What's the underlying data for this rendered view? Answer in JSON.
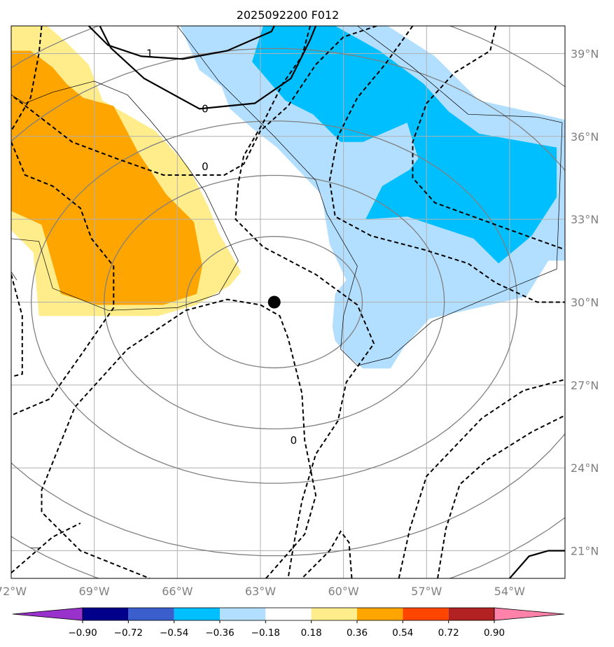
{
  "chart_data": {
    "type": "heatmap",
    "title": "2025092200 F012",
    "x": {
      "ticks": [
        -72,
        -69,
        -66,
        -63,
        -60,
        -57,
        -54
      ],
      "tick_labels": [
        "72°W",
        "69°W",
        "66°W",
        "63°W",
        "60°W",
        "57°W",
        "54°W"
      ],
      "range": [
        -72.0,
        -52.0
      ]
    },
    "y": {
      "ticks": [
        21,
        24,
        27,
        30,
        33,
        36,
        39
      ],
      "tick_labels": [
        "21°N",
        "24°N",
        "27°N",
        "30°N",
        "33°N",
        "36°N",
        "39°N"
      ],
      "range": [
        20.0,
        40.0
      ]
    },
    "grid": true,
    "colorbar": {
      "orientation": "horizontal",
      "extend": "both",
      "colors": [
        "#9932cc",
        "#00008b",
        "#3a5fcd",
        "#00bfff",
        "#b2dfff",
        "#ffffff",
        "#ffec8b",
        "#ffa500",
        "#ff4500",
        "#b22222",
        "#ff82ab"
      ],
      "ticks": [
        -0.9,
        -0.72,
        -0.54,
        -0.36,
        -0.18,
        0.18,
        0.36,
        0.54,
        0.72,
        0.9
      ],
      "tick_labels": [
        "−0.90",
        "−0.72",
        "−0.54",
        "−0.36",
        "−0.18",
        "0.18",
        "0.36",
        "0.54",
        "0.72",
        "0.90"
      ]
    },
    "center_marker": {
      "lon": -62.5,
      "lat": 30.0,
      "color": "#000000"
    },
    "range_rings_color": "#808080",
    "contour_labels": [
      {
        "text": "1",
        "lon": -67.0,
        "lat": 39.0
      },
      {
        "text": "0",
        "lon": -65.0,
        "lat": 37.0
      },
      {
        "text": "0",
        "lon": -65.0,
        "lat": 34.9
      },
      {
        "text": "0",
        "lon": -61.8,
        "lat": 25.0
      }
    ],
    "shaded_regions": [
      {
        "level": "0.18 to 0.36",
        "color": "#ffec8b",
        "polygon": [
          [
            -72,
            40
          ],
          [
            -70.7,
            40
          ],
          [
            -70,
            39.4
          ],
          [
            -69.2,
            38.6
          ],
          [
            -68.7,
            37.3
          ],
          [
            -66.8,
            36.2
          ],
          [
            -65.6,
            34.9
          ],
          [
            -64.9,
            33.5
          ],
          [
            -64.5,
            32.5
          ],
          [
            -63.7,
            31.1
          ],
          [
            -64.1,
            30.6
          ],
          [
            -65.3,
            29.9
          ],
          [
            -66.7,
            29.5
          ],
          [
            -68.6,
            29.5
          ],
          [
            -71,
            29.5
          ],
          [
            -71.2,
            31.8
          ],
          [
            -72,
            32.6
          ]
        ]
      },
      {
        "level": "0.36 to 0.54",
        "color": "#ffa500",
        "polygon": [
          [
            -72,
            39.1
          ],
          [
            -71.3,
            39.1
          ],
          [
            -70.5,
            38.5
          ],
          [
            -70,
            37.9
          ],
          [
            -69.4,
            37.4
          ],
          [
            -68.3,
            37.1
          ],
          [
            -67.4,
            35.4
          ],
          [
            -66.4,
            33.9
          ],
          [
            -65.4,
            32.9
          ],
          [
            -65.1,
            31.3
          ],
          [
            -65.3,
            30.3
          ],
          [
            -66.5,
            29.9
          ],
          [
            -68.9,
            29.9
          ],
          [
            -70.2,
            30.3
          ],
          [
            -70.9,
            32.8
          ],
          [
            -72,
            33.3
          ]
        ]
      },
      {
        "level": "-0.36 to -0.18",
        "color": "#b2dfff",
        "polygon": [
          [
            -65.9,
            40
          ],
          [
            -58.4,
            40
          ],
          [
            -56.7,
            38.9
          ],
          [
            -55.1,
            37.3
          ],
          [
            -52.4,
            36.7
          ],
          [
            -52,
            36.6
          ],
          [
            -52,
            31.5
          ],
          [
            -52.6,
            31.5
          ],
          [
            -53.4,
            30.2
          ],
          [
            -56.9,
            29.4
          ],
          [
            -57.8,
            28.4
          ],
          [
            -58.3,
            27.6
          ],
          [
            -59.3,
            27.6
          ],
          [
            -59.8,
            28
          ],
          [
            -60.3,
            28.6
          ],
          [
            -60.4,
            29.1
          ],
          [
            -60.3,
            30.3
          ],
          [
            -59.9,
            30.8
          ],
          [
            -60.5,
            32.1
          ],
          [
            -60.8,
            33.9
          ],
          [
            -62.4,
            35.6
          ],
          [
            -63.3,
            36.3
          ],
          [
            -64.1,
            37.0
          ],
          [
            -64.4,
            37.8
          ],
          [
            -65.2,
            38.4
          ]
        ]
      },
      {
        "level": "-0.54 to -0.36",
        "color": "#00bfff",
        "polygon": [
          [
            -62.9,
            40
          ],
          [
            -60.3,
            40
          ],
          [
            -58.7,
            39.1
          ],
          [
            -57.1,
            37.9
          ],
          [
            -56.2,
            36.9
          ],
          [
            -55.1,
            36.1
          ],
          [
            -52.3,
            35.6
          ],
          [
            -52.3,
            33.8
          ],
          [
            -53.2,
            32.4
          ],
          [
            -54.4,
            31.4
          ],
          [
            -55.3,
            32.3
          ],
          [
            -57.7,
            33.1
          ],
          [
            -59.2,
            33
          ],
          [
            -58.6,
            34.2
          ],
          [
            -57.6,
            34.8
          ],
          [
            -57.3,
            35.2
          ],
          [
            -57.7,
            36.5
          ],
          [
            -59.3,
            35.8
          ],
          [
            -60.1,
            35.8
          ],
          [
            -61.1,
            36.8
          ],
          [
            -62.1,
            37.3
          ],
          [
            -63.3,
            38.7
          ]
        ]
      }
    ]
  }
}
